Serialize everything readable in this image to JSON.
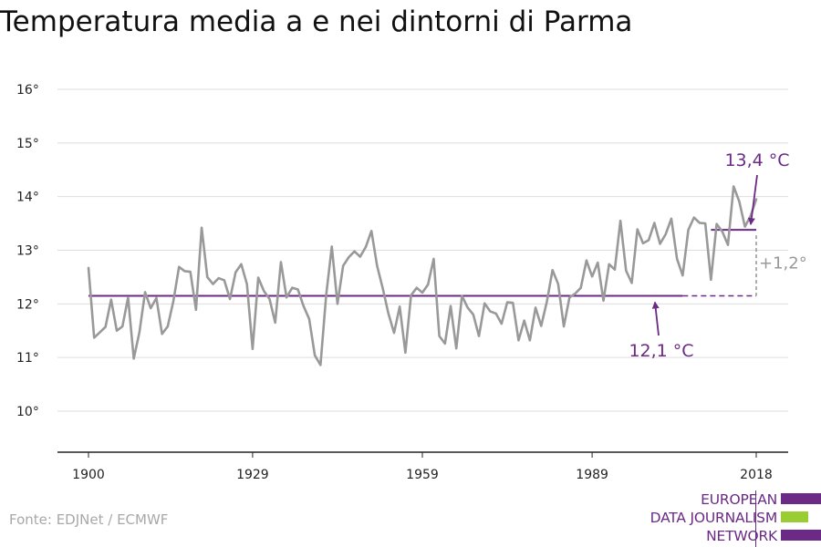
{
  "title": "Temperatura media a e nei dintorni di Parma",
  "source": "Fonte: EDJNet / ECMWF",
  "logo": {
    "lines": [
      "EUROPEAN",
      "DATA JOURNALISM",
      "NETWORK"
    ],
    "colors": {
      "purple": "#6b2a86",
      "green": "#9acd32"
    }
  },
  "chart_data": {
    "type": "line",
    "title": "Temperatura media a e nei dintorni di Parma",
    "xlabel": "",
    "ylabel": "",
    "xlim": [
      1900,
      2018
    ],
    "ylim": [
      10,
      16
    ],
    "yticks": [
      10,
      11,
      12,
      13,
      14,
      15,
      16
    ],
    "ytick_labels": [
      "10°",
      "11°",
      "12°",
      "13°",
      "14°",
      "15°",
      "16°"
    ],
    "xticks": [
      1900,
      1929,
      1959,
      1989,
      2018
    ],
    "xtick_labels": [
      "1900",
      "1929",
      "1959",
      "1989",
      "2018"
    ],
    "grid": true,
    "colors": {
      "series": "#999999",
      "reference": "#6b2a86",
      "difference": "#999999"
    },
    "series": [
      {
        "x": [
          1900,
          1901,
          1902,
          1903,
          1904,
          1905,
          1906,
          1907,
          1908,
          1909,
          1910,
          1911,
          1912,
          1913,
          1914,
          1915,
          1916,
          1917,
          1918,
          1919,
          1920,
          1921,
          1922,
          1923,
          1924,
          1925,
          1926,
          1927,
          1928,
          1929,
          1930,
          1931,
          1932,
          1933,
          1934,
          1935,
          1936,
          1937,
          1938,
          1939,
          1940,
          1941,
          1942,
          1943,
          1944,
          1945,
          1946,
          1947,
          1948,
          1949,
          1950,
          1951,
          1952,
          1953,
          1954,
          1955,
          1956,
          1957,
          1958,
          1959,
          1960,
          1961,
          1962,
          1963,
          1964,
          1965,
          1966,
          1967,
          1968,
          1969,
          1970,
          1971,
          1972,
          1973,
          1974,
          1975,
          1976,
          1977,
          1978,
          1979,
          1980,
          1981,
          1982,
          1983,
          1984,
          1985,
          1986,
          1987,
          1988,
          1989,
          1990,
          1991,
          1992,
          1993,
          1994,
          1995,
          1996,
          1997,
          1998,
          1999,
          2000,
          2001,
          2002,
          2003,
          2004,
          2005,
          2006,
          2007,
          2008,
          2009,
          2010,
          2011,
          2012,
          2013,
          2014,
          2015,
          2016,
          2017,
          2018
        ],
        "values": [
          12.67,
          11.37,
          11.47,
          11.57,
          12.08,
          11.5,
          11.58,
          12.12,
          10.98,
          11.47,
          12.22,
          11.92,
          12.11,
          11.44,
          11.58,
          12.05,
          12.69,
          12.61,
          12.6,
          11.89,
          13.42,
          12.5,
          12.37,
          12.48,
          12.44,
          12.09,
          12.59,
          12.74,
          12.37,
          11.16,
          12.49,
          12.24,
          12.09,
          11.65,
          12.78,
          12.12,
          12.3,
          12.27,
          11.96,
          11.72,
          11.04,
          10.86,
          12.16,
          13.07,
          12.0,
          12.71,
          12.87,
          12.98,
          12.88,
          13.06,
          13.36,
          12.71,
          12.29,
          11.82,
          11.46,
          11.95,
          11.09,
          12.16,
          12.3,
          12.21,
          12.36,
          12.84,
          11.4,
          11.26,
          11.96,
          11.17,
          12.15,
          11.93,
          11.8,
          11.4,
          12.01,
          11.86,
          11.82,
          11.63,
          12.03,
          12.02,
          11.32,
          11.69,
          11.32,
          11.93,
          11.59,
          12.04,
          12.63,
          12.37,
          11.58,
          12.12,
          12.19,
          12.3,
          12.81,
          12.51,
          12.77,
          12.06,
          12.74,
          12.64,
          13.55,
          12.62,
          12.39,
          13.39,
          13.13,
          13.19,
          13.51,
          13.12,
          13.3,
          13.59,
          12.84,
          12.53,
          13.38,
          13.61,
          13.51,
          13.5,
          12.45,
          13.49,
          13.35,
          13.1,
          14.19,
          13.91,
          13.44,
          13.64,
          13.95
        ]
      }
    ],
    "reference_lines": [
      {
        "label": "12,1 °C",
        "value": 12.15,
        "x_start": 1900,
        "x_end": 2005,
        "dashed_to": 2018
      },
      {
        "label": "13,4 °C",
        "value": 13.38,
        "x_start": 2010,
        "x_end": 2018
      }
    ],
    "difference_label": "+1,2°"
  }
}
